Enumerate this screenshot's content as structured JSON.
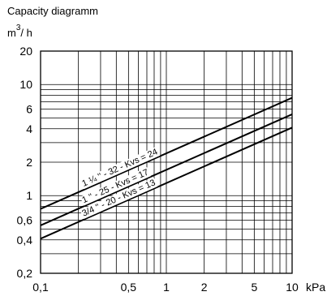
{
  "chart_data": {
    "type": "line",
    "title": "Capacity diagramm",
    "y_unit": {
      "base": "m",
      "sup": "3",
      "rest": "/ h"
    },
    "x_unit": "kPa",
    "x_scale": "log",
    "y_scale": "log",
    "xlim": [
      0.1,
      10
    ],
    "ylim": [
      0.2,
      20
    ],
    "grid": true,
    "x_ticks": [
      {
        "value": 0.1,
        "label": "0,1"
      },
      {
        "value": 0.5,
        "label": "0,5"
      },
      {
        "value": 1,
        "label": "1"
      },
      {
        "value": 2,
        "label": "2"
      },
      {
        "value": 5,
        "label": "5"
      },
      {
        "value": 10,
        "label": "10"
      }
    ],
    "y_ticks": [
      {
        "value": 0.2,
        "label": "0,2"
      },
      {
        "value": 0.4,
        "label": "0,4"
      },
      {
        "value": 0.6,
        "label": "0,6"
      },
      {
        "value": 1,
        "label": "1"
      },
      {
        "value": 2,
        "label": "2"
      },
      {
        "value": 4,
        "label": "4"
      },
      {
        "value": 6,
        "label": "6"
      },
      {
        "value": 10,
        "label": "10"
      },
      {
        "value": 20,
        "label": "20"
      }
    ],
    "series": [
      {
        "name": "1 ¼ '' - 32 - Kvs = 24",
        "kvs": 24,
        "x": [
          0.1,
          10
        ],
        "y": [
          0.76,
          7.6
        ]
      },
      {
        "name": "1 '' - 25 - Kvs = 17",
        "kvs": 17,
        "x": [
          0.1,
          10
        ],
        "y": [
          0.54,
          5.4
        ]
      },
      {
        "name": "3/4 '' - 20 - Kvs = 13",
        "kvs": 13,
        "x": [
          0.1,
          10
        ],
        "y": [
          0.41,
          4.1
        ]
      }
    ]
  }
}
